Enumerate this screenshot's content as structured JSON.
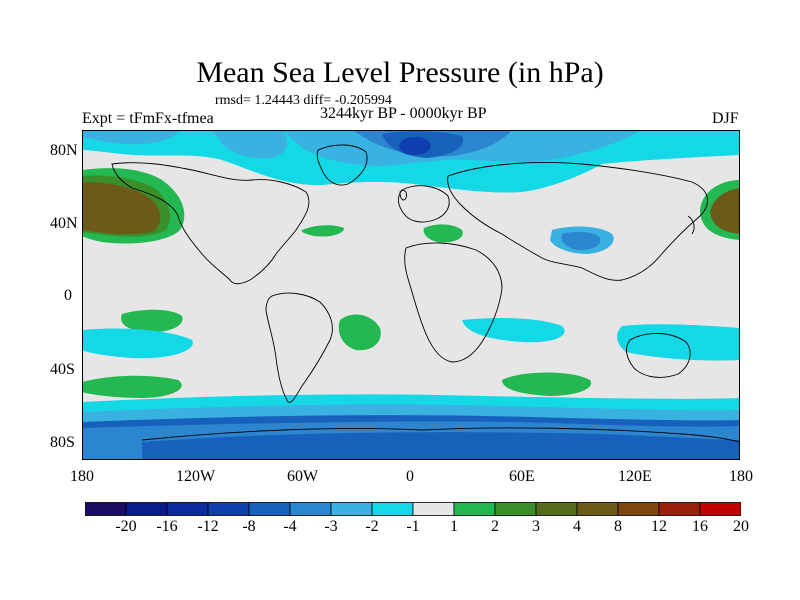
{
  "title": "Mean Sea Level Pressure (in hPa)",
  "stats": "rmsd= 1.24443 diff= -0.205994",
  "experiment": "Expt = tFmFx-tfmea",
  "period": "3244kyr BP - 0000kyr BP",
  "season": "DJF",
  "axes": {
    "lat_labels": [
      "80N",
      "40N",
      "0",
      "40S",
      "80S"
    ],
    "lon_labels": [
      "180",
      "120W",
      "60W",
      "0",
      "60E",
      "120E",
      "180"
    ]
  },
  "colorbar": {
    "labels": [
      "-20",
      "-16",
      "-12",
      "-8",
      "-4",
      "-3",
      "-2",
      "-1",
      "1",
      "2",
      "3",
      "4",
      "8",
      "12",
      "16",
      "20"
    ],
    "colors": [
      "#1a0d63",
      "#0d1a8c",
      "#0d2aa0",
      "#0f3fae",
      "#1761bd",
      "#2b86cf",
      "#39b2e2",
      "#14d8e6",
      "#e6e6e6",
      "#23b851",
      "#3a8f2a",
      "#556b1d",
      "#6b5a1a",
      "#7c4512",
      "#9a200b",
      "#c00000"
    ]
  },
  "colors": {
    "background_field": "#e6e6e6",
    "coast": "#000000"
  }
}
